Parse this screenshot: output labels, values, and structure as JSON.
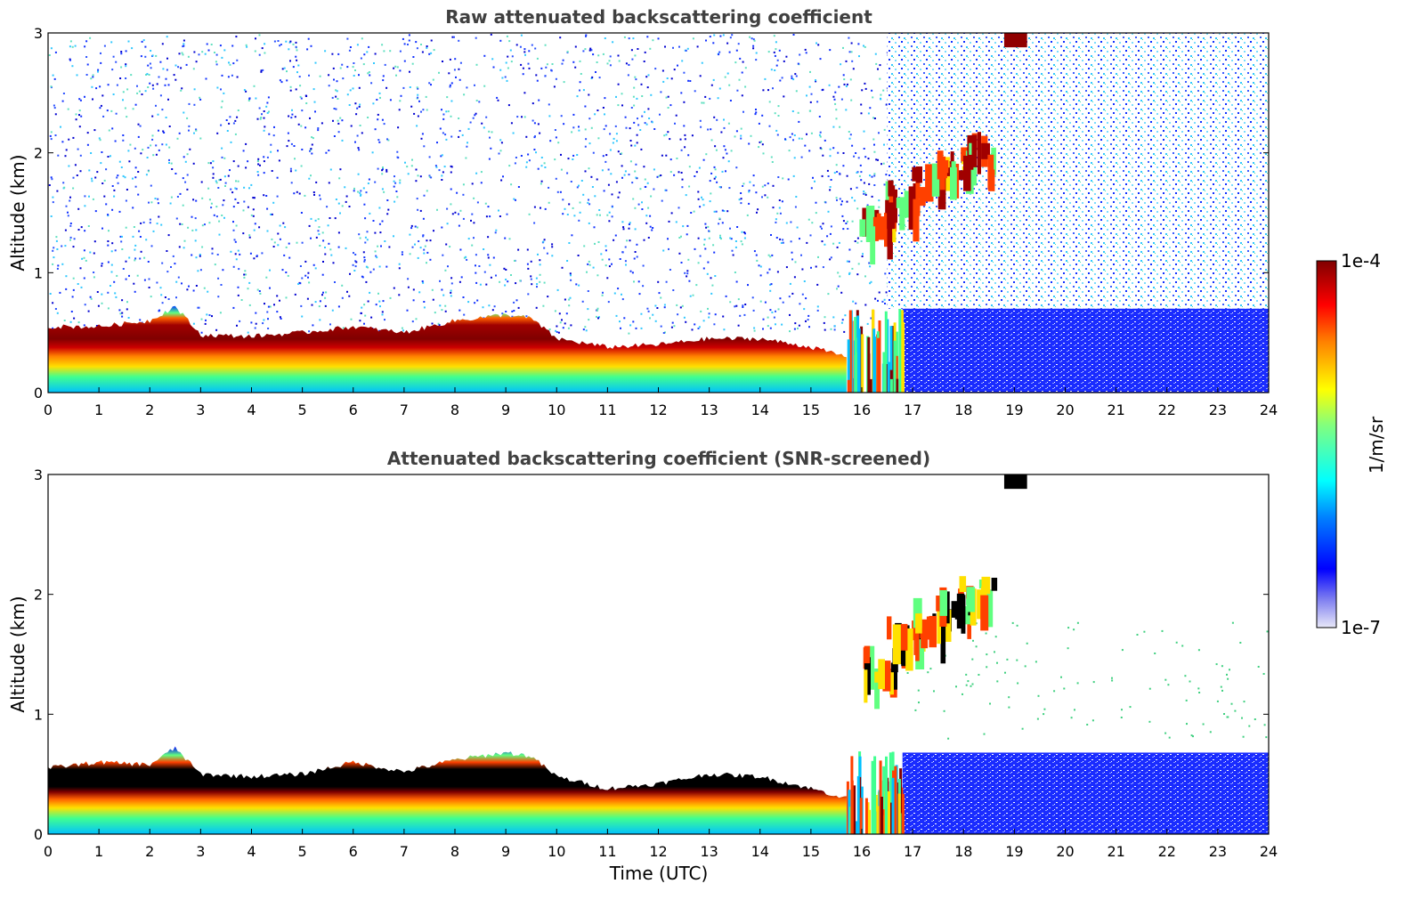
{
  "chart_data": [
    {
      "type": "heatmap",
      "title": "Raw attenuated backscattering coefficient",
      "xlabel": "",
      "ylabel": "Altitude (km)",
      "xlim": [
        0,
        24
      ],
      "ylim": [
        0,
        3
      ],
      "xticks": [
        "0",
        "1",
        "2",
        "3",
        "4",
        "5",
        "6",
        "7",
        "8",
        "9",
        "10",
        "11",
        "12",
        "13",
        "14",
        "15",
        "16",
        "17",
        "18",
        "19",
        "20",
        "21",
        "22",
        "23",
        "24"
      ],
      "yticks": [
        "0",
        "1",
        "2",
        "3"
      ],
      "features": {
        "boundary_layer_top_km": [
          [
            0,
            0.55
          ],
          [
            1,
            0.55
          ],
          [
            2,
            0.6
          ],
          [
            2.5,
            0.72
          ],
          [
            3,
            0.48
          ],
          [
            4,
            0.47
          ],
          [
            5,
            0.5
          ],
          [
            6,
            0.55
          ],
          [
            7,
            0.5
          ],
          [
            8,
            0.6
          ],
          [
            9,
            0.65
          ],
          [
            9.5,
            0.62
          ],
          [
            10,
            0.45
          ],
          [
            11,
            0.38
          ],
          [
            12,
            0.4
          ],
          [
            13,
            0.45
          ],
          [
            14,
            0.45
          ],
          [
            15,
            0.38
          ],
          [
            15.7,
            0.3
          ]
        ],
        "cloud_layer_km": [
          [
            16.3,
            1.5
          ],
          [
            16.8,
            1.75
          ],
          [
            17.3,
            1.9
          ],
          [
            17.8,
            2.0
          ],
          [
            18.2,
            2.1
          ]
        ],
        "noise_region_start_hour": 16.5
      }
    },
    {
      "type": "heatmap",
      "title": "Attenuated backscattering coefficient (SNR-screened)",
      "xlabel": "Time (UTC)",
      "ylabel": "Altitude (km)",
      "xlim": [
        0,
        24
      ],
      "ylim": [
        0,
        3
      ],
      "xticks": [
        "0",
        "1",
        "2",
        "3",
        "4",
        "5",
        "6",
        "7",
        "8",
        "9",
        "10",
        "11",
        "12",
        "13",
        "14",
        "15",
        "16",
        "17",
        "18",
        "19",
        "20",
        "21",
        "22",
        "23",
        "24"
      ],
      "yticks": [
        "0",
        "1",
        "2",
        "3"
      ],
      "features": {
        "boundary_layer_top_km": [
          [
            0,
            0.55
          ],
          [
            1,
            0.6
          ],
          [
            2,
            0.58
          ],
          [
            2.5,
            0.72
          ],
          [
            3,
            0.5
          ],
          [
            4,
            0.48
          ],
          [
            5,
            0.5
          ],
          [
            6,
            0.6
          ],
          [
            7,
            0.52
          ],
          [
            8,
            0.62
          ],
          [
            9,
            0.68
          ],
          [
            9.5,
            0.65
          ],
          [
            10,
            0.48
          ],
          [
            11,
            0.38
          ],
          [
            12,
            0.42
          ],
          [
            13,
            0.5
          ],
          [
            14,
            0.48
          ],
          [
            15,
            0.38
          ],
          [
            15.7,
            0.3
          ]
        ],
        "cloud_layer_km": [
          [
            16.3,
            1.5
          ],
          [
            16.8,
            1.75
          ],
          [
            17.3,
            1.9
          ],
          [
            17.8,
            2.0
          ],
          [
            18.2,
            2.1
          ]
        ],
        "screened_noise_band_top_km": 0.68
      }
    }
  ],
  "colorbar": {
    "label": "1/m/sr",
    "max_label": "1e-4",
    "min_label": "1e-7",
    "colormap": [
      "#e6e6fa",
      "#0000ff",
      "#00ffff",
      "#ffff00",
      "#ff0000",
      "#800000"
    ]
  }
}
